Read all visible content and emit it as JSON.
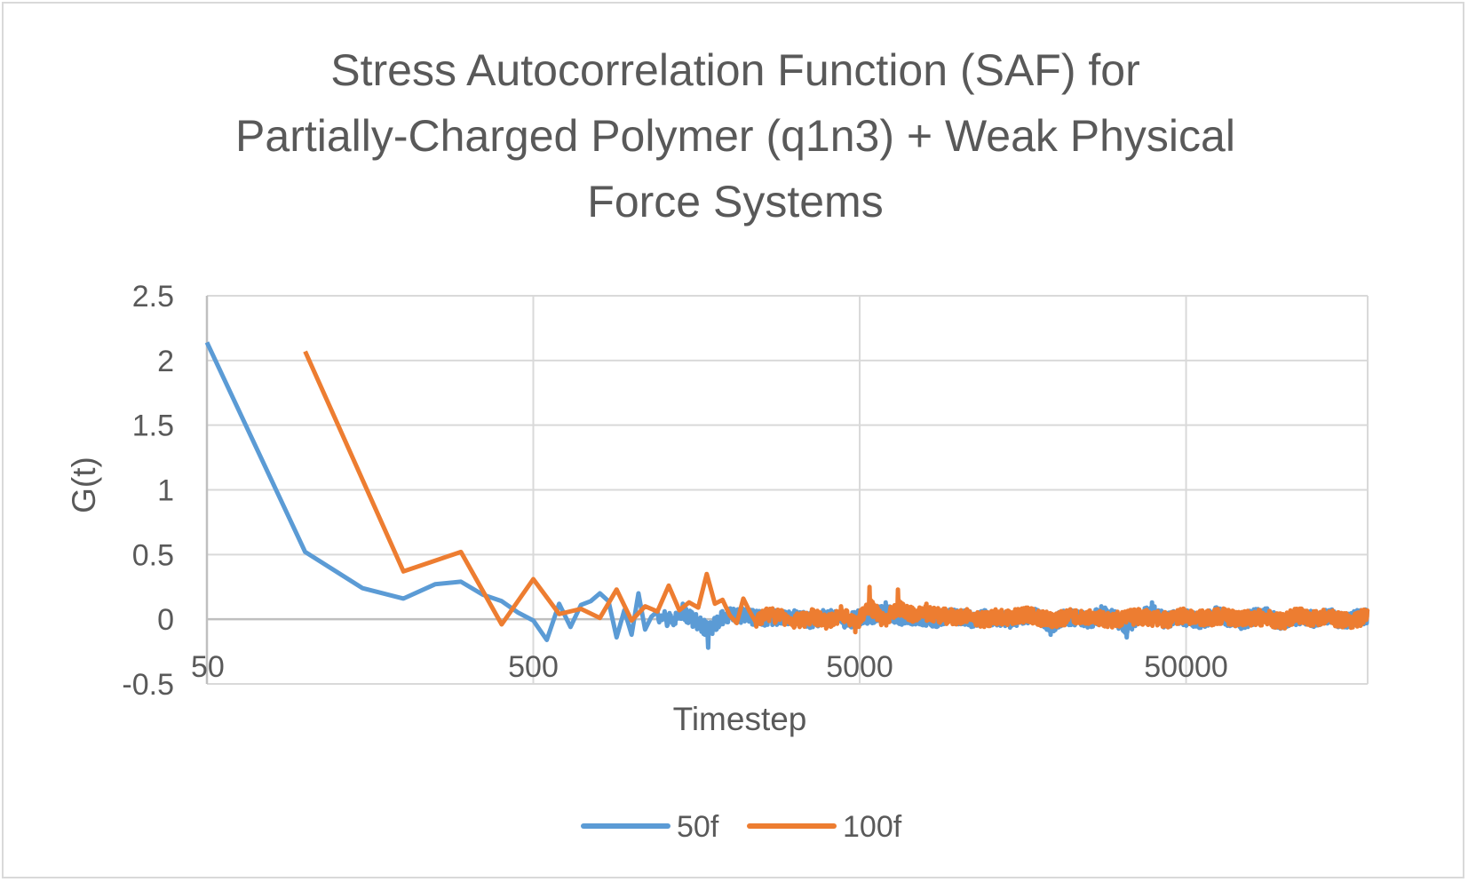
{
  "chart_data": {
    "type": "line",
    "title_lines": [
      "Stress Autocorrelation Function (SAF) for",
      "Partially-Charged Polymer (q1n3) + Weak Physical",
      "Force Systems"
    ],
    "xlabel": "Timestep",
    "ylabel": "G(t)",
    "x_scale": "log",
    "x_ticks": [
      50,
      500,
      5000,
      50000
    ],
    "x_tick_labels": [
      "50",
      "500",
      "5000",
      "50000"
    ],
    "xlim": [
      50,
      180000
    ],
    "ylim": [
      -0.5,
      2.5
    ],
    "y_ticks": [
      2.5,
      2,
      1.5,
      1,
      0.5,
      0,
      -0.5
    ],
    "y_tick_labels": [
      "2.5",
      "2",
      "1.5",
      "1",
      "0.5",
      "0",
      "-0.5"
    ],
    "grid": true,
    "legend_position": "bottom",
    "series": [
      {
        "name": "50f",
        "color": "#5b9bd5",
        "step": 50,
        "values": [
          2.14,
          0.52,
          0.24,
          0.16,
          0.27,
          0.29,
          0.19,
          0.14,
          0.05,
          -0.01,
          -0.16,
          0.12,
          -0.06,
          0.11,
          0.14,
          0.2,
          0.14,
          -0.14,
          0.07,
          -0.12,
          0.2,
          -0.08,
          0.02,
          0.06,
          -0.02,
          0.12,
          -0.03,
          -0.22,
          0.01,
          0.08,
          0.06,
          0.01,
          0.03,
          0.04,
          0.05,
          -0.02,
          0.03,
          0.06,
          -0.04,
          0.05,
          0.07,
          0.13,
          0.05,
          0.02,
          0.03,
          -0.05,
          0.06,
          0.04,
          -0.02,
          0.04,
          0.02,
          -0.03,
          0.05,
          0.07,
          -0.12,
          0.04,
          0.03,
          -0.04,
          0.1,
          0.03,
          -0.14,
          0.06,
          0.13,
          -0.02,
          0.05,
          0.01,
          -0.03,
          0.09,
          0.02,
          -0.05,
          0.04,
          0.08,
          -0.06,
          0.03,
          0.05,
          -0.02,
          0.07,
          -0.04,
          0.02,
          0.06
        ]
      },
      {
        "name": "100f",
        "color": "#ed7d31",
        "step": 100,
        "values": [
          2.07,
          0.37,
          0.52,
          -0.04,
          0.31,
          0.04,
          0.08,
          0.01,
          0.23,
          -0.01,
          0.1,
          0.06,
          0.26,
          0.07,
          0.13,
          0.09,
          0.35,
          0.12,
          0.15,
          0.03,
          -0.03,
          0.16,
          0.06,
          -0.02,
          0.08,
          0.02,
          -0.03,
          0.05,
          -0.06,
          0.1,
          -0.1,
          0.25,
          -0.02,
          0.23,
          0.09,
          0.12,
          0.07,
          0.04,
          0.06,
          -0.01,
          0.05,
          0.03,
          0.09,
          0.02,
          -0.04,
          0.06,
          0.01,
          0.04,
          -0.03,
          0.03,
          0.05,
          0.02,
          -0.02,
          0.06,
          0.01,
          0.03,
          0.07,
          -0.01,
          0.04,
          0.02,
          -0.05,
          0.08,
          0.02,
          0.05,
          0.0,
          -0.02,
          0.06
        ]
      }
    ]
  }
}
